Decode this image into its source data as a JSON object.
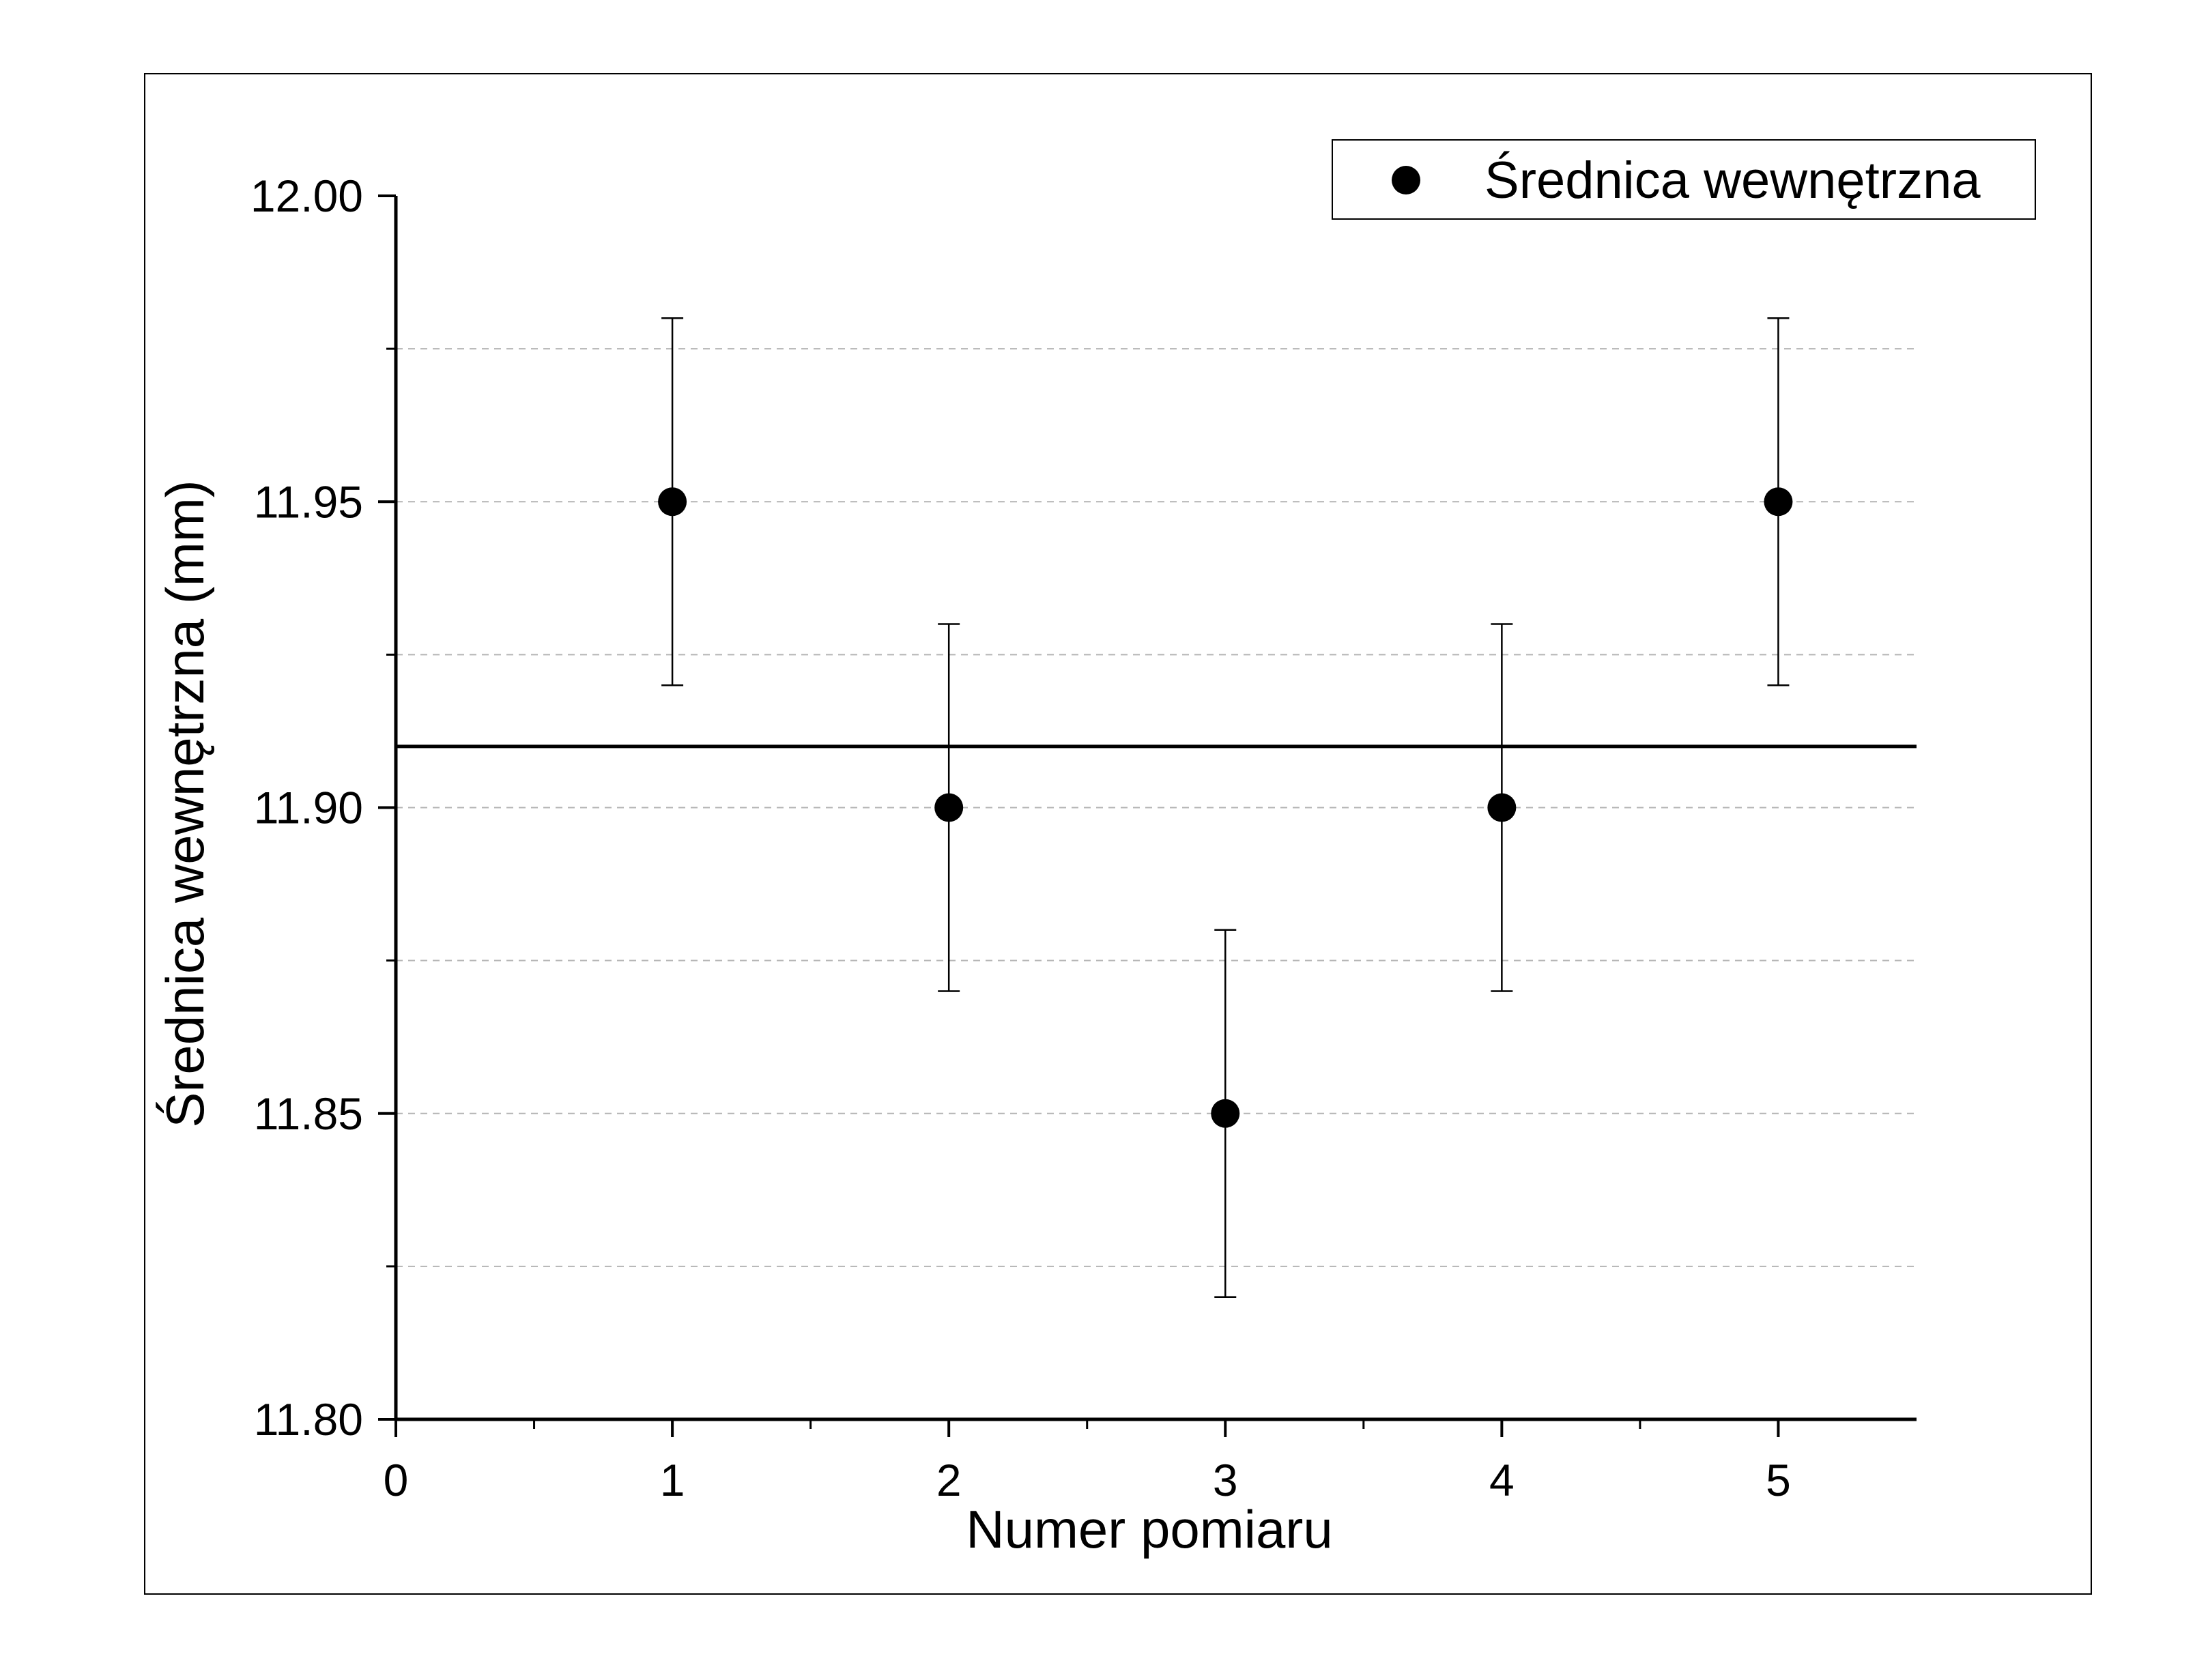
{
  "chart_data": {
    "type": "scatter",
    "title": "",
    "xlabel": "Numer pomiaru",
    "ylabel": "Średnica wewnętrzna (mm)",
    "xlim": [
      0,
      5.5
    ],
    "ylim": [
      11.8,
      12.0
    ],
    "xticks": [
      0,
      1,
      2,
      3,
      4,
      5
    ],
    "xtick_labels": [
      "0",
      "1",
      "2",
      "3",
      "4",
      "5"
    ],
    "yticks": [
      11.8,
      11.85,
      11.9,
      11.95,
      12.0
    ],
    "ytick_labels": [
      "11.80",
      "11.85",
      "11.90",
      "11.95",
      "12.00"
    ],
    "y_minor_gridlines": [
      11.825,
      11.875,
      11.925,
      11.975
    ],
    "grid": "horizontal dashed",
    "legend_position": "top-right",
    "series": [
      {
        "name": "Średnica wewnętrzna",
        "x": [
          1,
          2,
          3,
          4,
          5
        ],
        "y": [
          11.95,
          11.9,
          11.85,
          11.9,
          11.95
        ],
        "error": [
          0.03,
          0.03,
          0.03,
          0.03,
          0.03
        ],
        "marker": "filled-circle",
        "color": "#000000"
      }
    ],
    "reference_line": {
      "y": 11.91,
      "style": "solid",
      "color": "#000000"
    }
  }
}
